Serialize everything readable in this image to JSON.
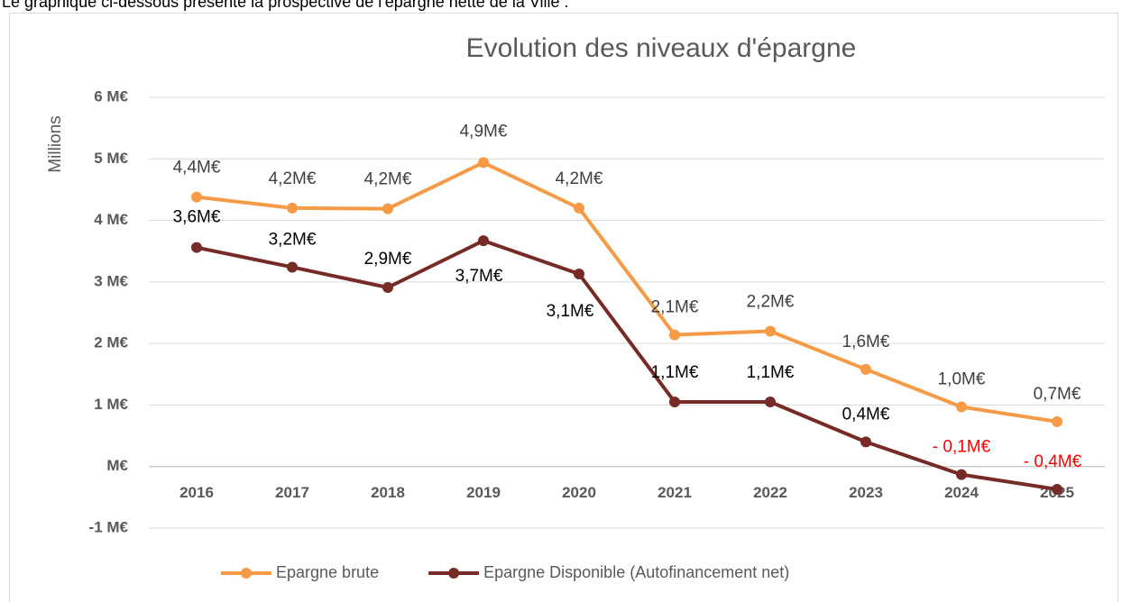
{
  "intro": "Le graphique ci-dessous présente la prospective de l'épargne nette de la Ville :",
  "chart_data": {
    "type": "line",
    "title": "Evolution des niveaux d'épargne",
    "y_label": "Millions",
    "categories": [
      "2016",
      "2017",
      "2018",
      "2019",
      "2020",
      "2021",
      "2022",
      "2023",
      "2024",
      "2025"
    ],
    "series": [
      {
        "name": "Epargne brute",
        "color": "#f79a46",
        "values": [
          4.38,
          4.2,
          4.19,
          4.94,
          4.2,
          2.14,
          2.2,
          1.58,
          0.97,
          0.73
        ],
        "value_labels": [
          "4,4M€",
          "4,2M€",
          "4,2M€",
          "4,9M€",
          "4,2M€",
          "2,1M€",
          "2,2M€",
          "1,6M€",
          "1,0M€",
          "0,7M€"
        ]
      },
      {
        "name": "Epargne Disponible (Autofinancement net)",
        "color": "#772b27",
        "values": [
          3.56,
          3.24,
          2.91,
          3.67,
          3.13,
          1.05,
          1.05,
          0.4,
          -0.13,
          -0.37
        ],
        "value_labels": [
          "3,6M€",
          "3,2M€",
          "2,9M€",
          "3,7M€",
          "3,1M€",
          "1,1M€",
          "1,1M€",
          "0,4M€",
          "- 0,1M€",
          "- 0,4M€"
        ]
      }
    ],
    "negative_label_color": "#ff0000",
    "ylim": [
      -1,
      6
    ],
    "yticks": [
      {
        "value": -1,
        "label": "-1 M€"
      },
      {
        "value": 0,
        "label": "M€"
      },
      {
        "value": 1,
        "label": "1 M€"
      },
      {
        "value": 2,
        "label": "2 M€"
      },
      {
        "value": 3,
        "label": "3 M€"
      },
      {
        "value": 4,
        "label": "4 M€"
      },
      {
        "value": 5,
        "label": "5 M€"
      },
      {
        "value": 6,
        "label": "6 M€"
      }
    ],
    "grid": true,
    "legend": "bottom"
  }
}
